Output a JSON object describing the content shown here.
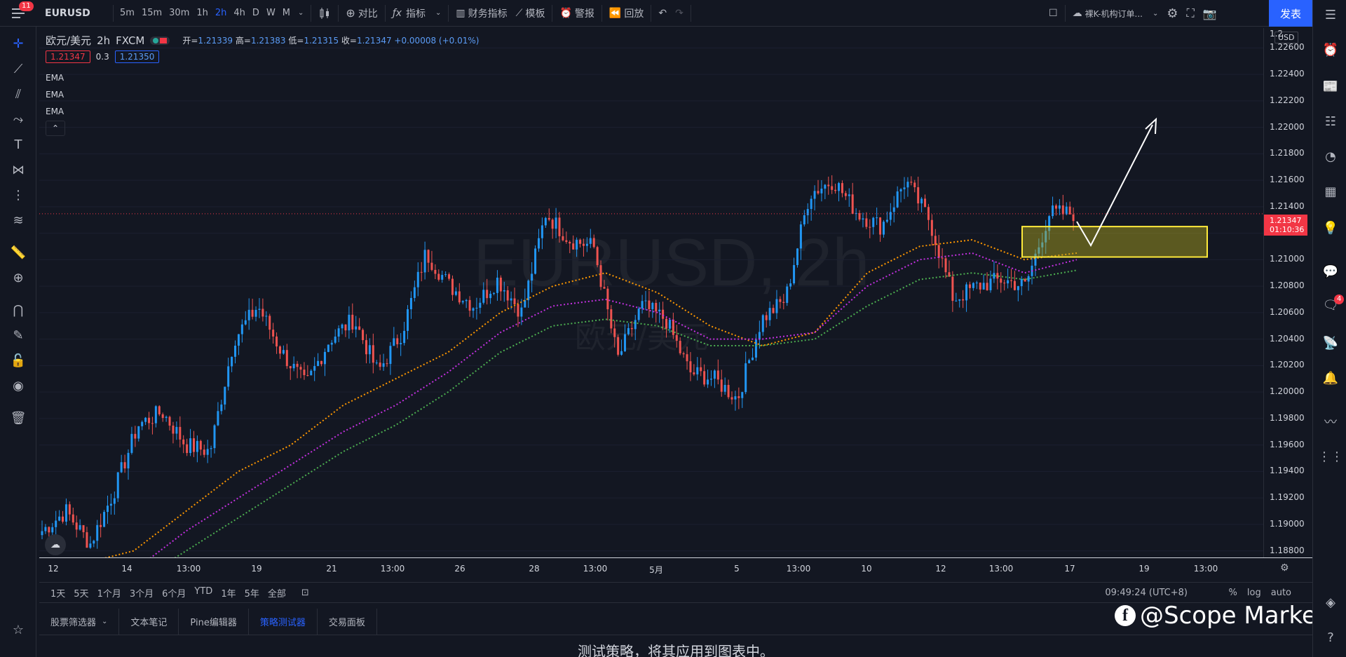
{
  "topbar": {
    "menu_badge": "11",
    "symbol": "EURUSD",
    "intervals": [
      "5m",
      "15m",
      "30m",
      "1h",
      "2h",
      "4h",
      "D",
      "W",
      "M"
    ],
    "active_interval": "2h",
    "compare": "对比",
    "indicators": "指标",
    "financials": "财务指标",
    "templates": "模板",
    "alerts": "警报",
    "replay": "回放",
    "layout_name": "裸K-机构订单...",
    "publish": "发表"
  },
  "legend": {
    "pair": "欧元/美元",
    "interval": "2h",
    "exchange": "FXCM",
    "open_label": "开=",
    "open": "1.21339",
    "high_label": "高=",
    "high": "1.21383",
    "low_label": "低=",
    "low": "1.21315",
    "close_label": "收=",
    "close": "1.21347",
    "change": "+0.00008 (+0.01%)",
    "bid": "1.21347",
    "spread": "0.3",
    "ask": "1.21350",
    "ema1": "EMA",
    "ema2": "EMA",
    "ema3": "EMA"
  },
  "watermark": {
    "main": "EURUSD, 2h",
    "sub": "欧元/美元"
  },
  "price_axis": {
    "currency": "USD",
    "top_partial": "1.2",
    "labels": [
      "1.22600",
      "1.22400",
      "1.22200",
      "1.22000",
      "1.21800",
      "1.21600",
      "1.21400",
      "1.21200",
      "1.21000",
      "1.20800",
      "1.20600",
      "1.20400",
      "1.20200",
      "1.20000",
      "1.19800",
      "1.19600",
      "1.19400",
      "1.19200",
      "1.19000",
      "1.18800"
    ],
    "current_price": "1.21347",
    "countdown": "01:10:36"
  },
  "time_axis": {
    "labels": [
      "12",
      "14",
      "13:00",
      "19",
      "21",
      "13:00",
      "26",
      "28",
      "13:00",
      "5月",
      "5",
      "13:00",
      "10",
      "12",
      "13:00",
      "17",
      "19",
      "13:00"
    ]
  },
  "range_bar": {
    "ranges": [
      "1天",
      "5天",
      "1个月",
      "3个月",
      "6个月",
      "YTD",
      "1年",
      "5年",
      "全部"
    ],
    "clock": "09:49:24 (UTC+8)",
    "percent": "%",
    "log": "log",
    "auto": "auto"
  },
  "bottom_tabs": {
    "tabs": [
      "股票筛选器",
      "文本笔记",
      "Pine编辑器",
      "策略测试器",
      "交易面板"
    ],
    "active": "策略测试器",
    "message": "测试策略，将其应用到图表中。"
  },
  "branding": {
    "text": "@Scope Markets"
  },
  "right_badge": "4",
  "colors": {
    "background": "#131722",
    "up_candle": "#2196f3",
    "down_candle": "#ef5350",
    "ema_fast": "#ff9800",
    "ema_mid": "#c330e0",
    "ema_slow": "#4caf50",
    "zone": "#ffeb3b",
    "accent": "#2962ff"
  },
  "chart_data": {
    "type": "candlestick",
    "symbol": "EURUSD",
    "interval": "2h",
    "ylim": [
      1.1875,
      1.2275
    ],
    "close_path": [
      {
        "x": "12",
        "y": 1.1895
      },
      {
        "x": "13",
        "y": 1.191
      },
      {
        "x": "14",
        "y": 1.1885
      },
      {
        "x": "14b",
        "y": 1.1925
      },
      {
        "x": "15",
        "y": 1.1975
      },
      {
        "x": "16",
        "y": 1.1985
      },
      {
        "x": "16b",
        "y": 1.196
      },
      {
        "x": "19",
        "y": 1.1955
      },
      {
        "x": "19b",
        "y": 1.204
      },
      {
        "x": "20",
        "y": 1.2065
      },
      {
        "x": "21",
        "y": 1.203
      },
      {
        "x": "21b",
        "y": 1.2005
      },
      {
        "x": "22",
        "y": 1.204
      },
      {
        "x": "23",
        "y": 1.2055
      },
      {
        "x": "23b",
        "y": 1.2015
      },
      {
        "x": "24",
        "y": 1.2045
      },
      {
        "x": "26",
        "y": 1.2105
      },
      {
        "x": "27",
        "y": 1.208
      },
      {
        "x": "28",
        "y": 1.2065
      },
      {
        "x": "28b",
        "y": 1.2085
      },
      {
        "x": "29",
        "y": 1.206
      },
      {
        "x": "29b",
        "y": 1.2135
      },
      {
        "x": "30",
        "y": 1.2115
      },
      {
        "x": "30b",
        "y": 1.211
      },
      {
        "x": "5月",
        "y": 1.2025
      },
      {
        "x": "4",
        "y": 1.2065
      },
      {
        "x": "4b",
        "y": 1.2055
      },
      {
        "x": "5",
        "y": 1.2015
      },
      {
        "x": "6",
        "y": 1.201
      },
      {
        "x": "6b",
        "y": 1.1995
      },
      {
        "x": "7",
        "y": 1.2055
      },
      {
        "x": "7b",
        "y": 1.207
      },
      {
        "x": "10",
        "y": 1.215
      },
      {
        "x": "10b",
        "y": 1.216
      },
      {
        "x": "11",
        "y": 1.2135
      },
      {
        "x": "11b",
        "y": 1.2125
      },
      {
        "x": "12",
        "y": 1.216
      },
      {
        "x": "12b",
        "y": 1.213
      },
      {
        "x": "13",
        "y": 1.207
      },
      {
        "x": "13b",
        "y": 1.208
      },
      {
        "x": "14",
        "y": 1.2085
      },
      {
        "x": "14b",
        "y": 1.208
      },
      {
        "x": "17",
        "y": 1.2135
      },
      {
        "x": "17b",
        "y": 1.2135
      }
    ],
    "ema_series": [
      {
        "color_key": "ema_fast",
        "values": [
          1.187,
          1.188,
          1.191,
          1.194,
          1.196,
          1.199,
          1.201,
          1.203,
          1.206,
          1.208,
          1.209,
          1.2075,
          1.205,
          1.2035,
          1.2045,
          1.209,
          1.211,
          1.2115,
          1.21,
          1.2105
        ]
      },
      {
        "color_key": "ema_mid",
        "values": [
          1.1858,
          1.1865,
          1.1895,
          1.192,
          1.1945,
          1.197,
          1.199,
          1.2015,
          1.2045,
          1.2065,
          1.207,
          1.206,
          1.204,
          1.204,
          1.2045,
          1.208,
          1.21,
          1.2105,
          1.209,
          1.21
        ]
      },
      {
        "color_key": "ema_slow",
        "values": [
          1.1848,
          1.1855,
          1.188,
          1.1905,
          1.193,
          1.1955,
          1.1975,
          1.2,
          1.203,
          1.205,
          1.2055,
          1.205,
          1.2035,
          1.2035,
          1.204,
          1.2065,
          1.2085,
          1.209,
          1.2085,
          1.2092
        ]
      }
    ],
    "zone": {
      "y_top": 1.2125,
      "y_bottom": 1.2102
    },
    "current_price": 1.21347
  }
}
